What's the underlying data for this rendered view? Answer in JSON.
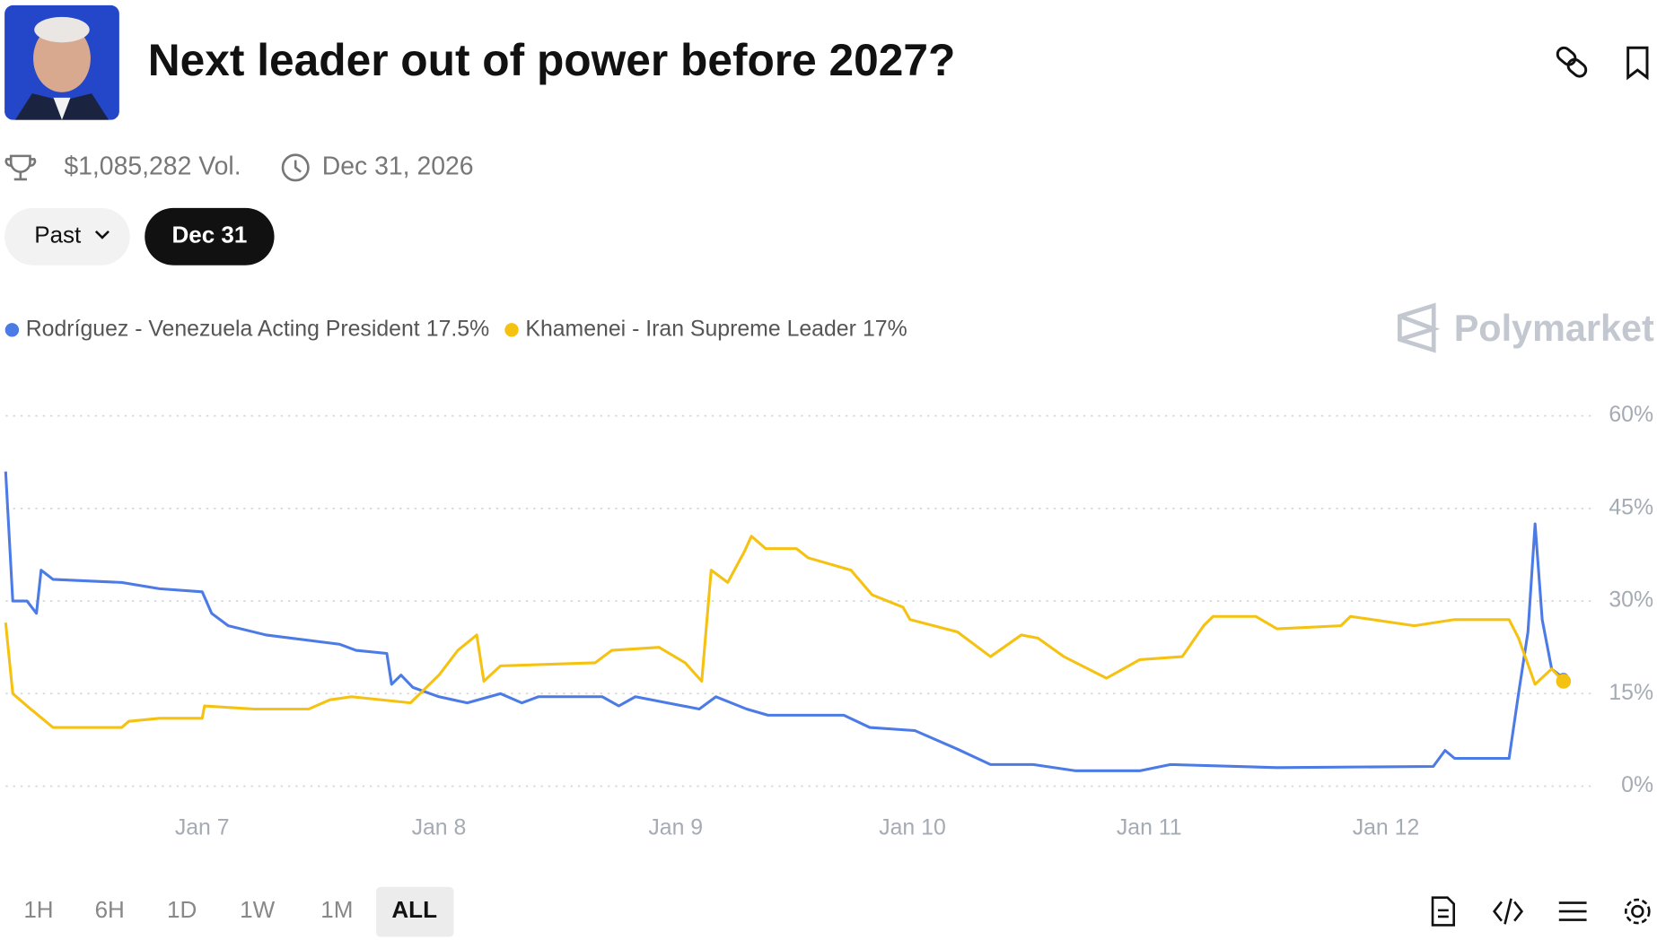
{
  "header": {
    "title": "Next leader out of power before 2027?",
    "volume": "$1,085,282 Vol.",
    "end_date": "Dec 31, 2026"
  },
  "filters": {
    "past": "Past",
    "active": "Dec 31"
  },
  "watermark": "Polymarket",
  "legend_values": [
    "17.5%",
    "17%"
  ],
  "ranges": [
    "1H",
    "6H",
    "1D",
    "1W",
    "1M",
    "ALL"
  ],
  "chart_data": {
    "type": "line",
    "xlim": [
      6.17,
      12.87
    ],
    "xticks": [
      {
        "value": 7,
        "label": "Jan 7"
      },
      {
        "value": 8,
        "label": "Jan 8"
      },
      {
        "value": 9,
        "label": "Jan 9"
      },
      {
        "value": 10,
        "label": "Jan 10"
      },
      {
        "value": 11,
        "label": "Jan 11"
      },
      {
        "value": 12,
        "label": "Jan 12"
      }
    ],
    "ylim": [
      0,
      60
    ],
    "yticks": [
      {
        "value": 0,
        "label": "0%"
      },
      {
        "value": 15,
        "label": "15%"
      },
      {
        "value": 30,
        "label": "30%"
      },
      {
        "value": 45,
        "label": "45%"
      },
      {
        "value": 60,
        "label": "60%"
      }
    ],
    "grid": true,
    "series": [
      {
        "name": "Rodríguez - Venezuela Acting President",
        "color": "#4c7be6",
        "x": [
          6.17,
          6.2,
          6.26,
          6.3,
          6.32,
          6.37,
          6.66,
          6.82,
          7.0,
          7.04,
          7.11,
          7.27,
          7.58,
          7.65,
          7.78,
          7.8,
          7.84,
          7.89,
          8.0,
          8.12,
          8.26,
          8.35,
          8.42,
          8.69,
          8.76,
          8.83,
          9.1,
          9.17,
          9.3,
          9.39,
          9.71,
          9.82,
          10.01,
          10.19,
          10.33,
          10.51,
          10.69,
          10.96,
          11.09,
          11.54,
          12.2,
          12.25,
          12.29,
          12.52,
          12.56,
          12.6,
          12.63,
          12.66,
          12.7,
          12.75
        ],
        "values": [
          51,
          30,
          30,
          28,
          35,
          33.5,
          33,
          32,
          31.5,
          28,
          26,
          24.5,
          23,
          22,
          21.5,
          16.5,
          18,
          16,
          14.5,
          13.5,
          15,
          13.5,
          14.5,
          14.5,
          13,
          14.5,
          12.5,
          14.5,
          12.5,
          11.5,
          11.5,
          9.5,
          9,
          6,
          3.5,
          3.5,
          2.5,
          2.5,
          3.5,
          3,
          3.2,
          5.8,
          4.5,
          4.5,
          15,
          25,
          42.5,
          27,
          19,
          17.5
        ]
      },
      {
        "name": "Khamenei - Iran Supreme Leader",
        "color": "#f5c211",
        "x": [
          6.17,
          6.2,
          6.26,
          6.37,
          6.66,
          6.69,
          6.82,
          7.0,
          7.01,
          7.22,
          7.45,
          7.54,
          7.63,
          7.88,
          8.0,
          8.08,
          8.16,
          8.19,
          8.26,
          8.66,
          8.73,
          8.93,
          9.04,
          9.11,
          9.15,
          9.22,
          9.29,
          9.32,
          9.38,
          9.51,
          9.56,
          9.74,
          9.83,
          9.96,
          9.99,
          10.19,
          10.33,
          10.46,
          10.53,
          10.64,
          10.82,
          10.96,
          11.14,
          11.23,
          11.27,
          11.45,
          11.54,
          11.81,
          11.85,
          12.12,
          12.29,
          12.52,
          12.56,
          12.63,
          12.7,
          12.75
        ],
        "values": [
          26.5,
          15,
          13,
          9.5,
          9.5,
          10.5,
          11,
          11,
          13,
          12.5,
          12.5,
          14,
          14.5,
          13.5,
          18,
          22,
          24.5,
          17,
          19.5,
          20,
          22,
          22.5,
          20,
          17,
          35,
          33,
          38,
          40.5,
          38.5,
          38.5,
          37,
          35,
          31,
          29,
          27,
          25,
          21,
          24.5,
          24,
          21,
          17.5,
          20.5,
          21,
          26,
          27.5,
          27.5,
          25.5,
          26,
          27.5,
          26,
          27,
          27,
          24,
          16.5,
          19,
          17
        ]
      }
    ]
  }
}
